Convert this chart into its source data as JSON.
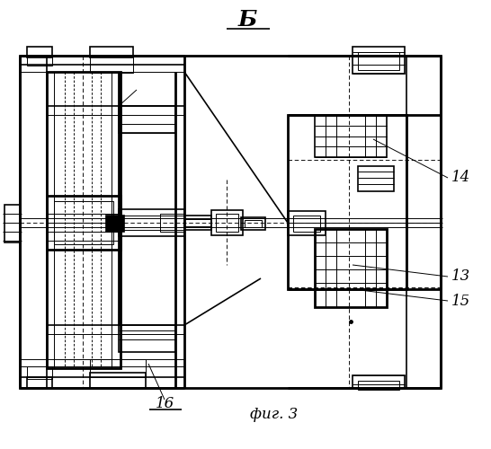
{
  "bg_color": "#ffffff",
  "line_color": "#000000",
  "title": "Б",
  "caption": "фиг. 3",
  "lw_thick": 2.0,
  "lw_med": 1.2,
  "lw_thin": 0.7,
  "lw_dash": 0.65
}
